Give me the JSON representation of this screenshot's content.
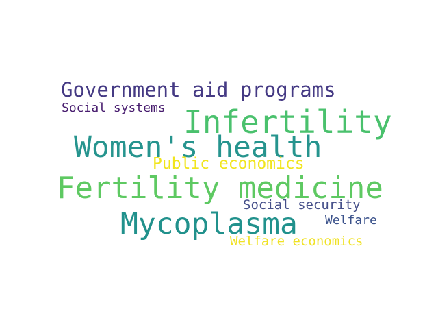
{
  "words": [
    {
      "text": "Government aid programs",
      "color": "#453a84"
    },
    {
      "text": "Social systems",
      "color": "#481d6f"
    },
    {
      "text": "Infertility",
      "color": "#4ac16d"
    },
    {
      "text": "Women's health",
      "color": "#26948e"
    },
    {
      "text": "Public economics",
      "color": "#f1e51d"
    },
    {
      "text": "Fertility medicine",
      "color": "#5ec962"
    },
    {
      "text": "Social security",
      "color": "#46508a"
    },
    {
      "text": "Mycoplasma",
      "color": "#21918c"
    },
    {
      "text": "Welfare",
      "color": "#3b528b"
    },
    {
      "text": "Welfare economics",
      "color": "#f0e225"
    }
  ]
}
